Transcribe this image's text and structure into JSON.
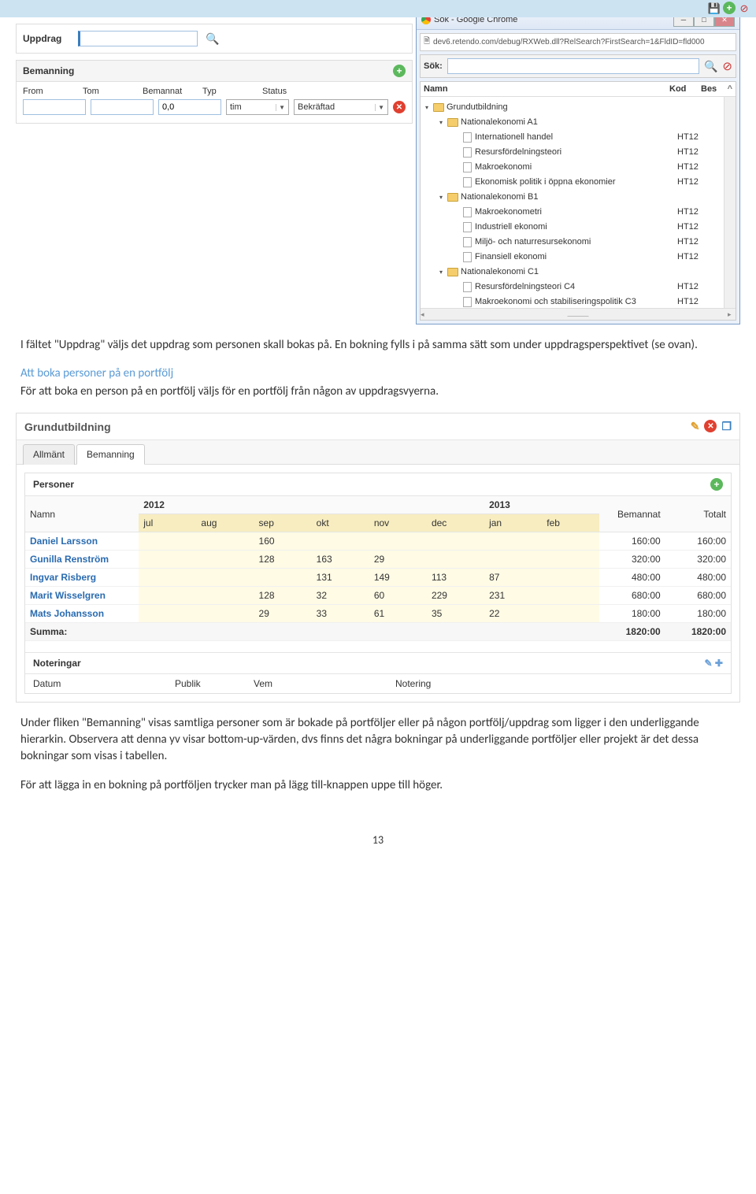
{
  "topbar_icons": {
    "save": "💾",
    "add": "+",
    "block": "⊘"
  },
  "uppdrag": {
    "label": "Uppdrag",
    "value": ""
  },
  "bemanning": {
    "title": "Bemanning",
    "cols": {
      "from": "From",
      "tom": "Tom",
      "bemannat": "Bemannat",
      "typ": "Typ",
      "status": "Status"
    },
    "row": {
      "from": "",
      "tom": "",
      "bemannat": "0,0",
      "typ": "tim",
      "status": "Bekräftad"
    }
  },
  "popup": {
    "title": "Sök - Google Chrome",
    "url": "dev6.retendo.com/debug/RXWeb.dll?RelSearch?FirstSearch=1&FldID=fld000",
    "sok_label": "Sök:",
    "cols": {
      "namn": "Namn",
      "kod": "Kod",
      "bes": "Bes",
      "caret": "^"
    },
    "tree": [
      {
        "indent": 0,
        "type": "folder",
        "expand": "▾",
        "label": "Grundutbildning",
        "kod": ""
      },
      {
        "indent": 1,
        "type": "folder",
        "expand": "▾",
        "label": "Nationalekonomi A1",
        "kod": ""
      },
      {
        "indent": 2,
        "type": "doc",
        "label": "Internationell handel",
        "kod": "HT12"
      },
      {
        "indent": 2,
        "type": "doc",
        "label": "Resursfördelningsteori",
        "kod": "HT12"
      },
      {
        "indent": 2,
        "type": "doc",
        "label": "Makroekonomi",
        "kod": "HT12"
      },
      {
        "indent": 2,
        "type": "doc",
        "label": "Ekonomisk politik i öppna ekonomier",
        "kod": "HT12"
      },
      {
        "indent": 1,
        "type": "folder",
        "expand": "▾",
        "label": "Nationalekonomi B1",
        "kod": ""
      },
      {
        "indent": 2,
        "type": "doc",
        "label": "Makroekonometri",
        "kod": "HT12"
      },
      {
        "indent": 2,
        "type": "doc",
        "label": "Industriell ekonomi",
        "kod": "HT12"
      },
      {
        "indent": 2,
        "type": "doc",
        "label": "Miljö- och naturresursekonomi",
        "kod": "HT12"
      },
      {
        "indent": 2,
        "type": "doc",
        "label": "Finansiell ekonomi",
        "kod": "HT12"
      },
      {
        "indent": 1,
        "type": "folder",
        "expand": "▾",
        "label": "Nationalekonomi C1",
        "kod": ""
      },
      {
        "indent": 2,
        "type": "doc",
        "label": "Resursfördelningsteori C4",
        "kod": "HT12"
      },
      {
        "indent": 2,
        "type": "doc",
        "label": "Makroekonomi och stabiliseringspolitik C3",
        "kod": "HT12"
      }
    ]
  },
  "para1a": "I fältet \"Uppdrag\" väljs det uppdrag som personen skall bokas på. En bokning fylls i på samma sätt som under uppdragsperspektivet (se ovan).",
  "subheading": "Att boka personer på en portfölj",
  "para1b": "För att boka en person på en portfölj väljs för en portfölj från någon av uppdragsvyerna.",
  "grundutbildning": {
    "title": "Grundutbildning",
    "tabs": {
      "allmant": "Allmänt",
      "bemanning": "Bemanning"
    },
    "personer": {
      "title": "Personer",
      "year1": "2012",
      "year2": "2013",
      "months": [
        "jul",
        "aug",
        "sep",
        "okt",
        "nov",
        "dec",
        "jan",
        "feb"
      ],
      "col_namn": "Namn",
      "col_bemannat": "Bemannat",
      "col_totalt": "Totalt",
      "rows": [
        {
          "name": "Daniel Larsson",
          "vals": [
            "",
            "",
            "160",
            "",
            "",
            "",
            "",
            ""
          ],
          "bem": "160:00",
          "tot": "160:00"
        },
        {
          "name": "Gunilla Renström",
          "vals": [
            "",
            "",
            "128",
            "163",
            "29",
            "",
            "",
            ""
          ],
          "bem": "320:00",
          "tot": "320:00"
        },
        {
          "name": "Ingvar Risberg",
          "vals": [
            "",
            "",
            "",
            "131",
            "149",
            "113",
            "87",
            ""
          ],
          "bem": "480:00",
          "tot": "480:00"
        },
        {
          "name": "Marit Wisselgren",
          "vals": [
            "",
            "",
            "128",
            "32",
            "60",
            "229",
            "231",
            ""
          ],
          "bem": "680:00",
          "tot": "680:00"
        },
        {
          "name": "Mats Johansson",
          "vals": [
            "",
            "",
            "29",
            "33",
            "61",
            "35",
            "22",
            ""
          ],
          "bem": "180:00",
          "tot": "180:00"
        }
      ],
      "sum_label": "Summa:",
      "sum_bem": "1820:00",
      "sum_tot": "1820:00"
    },
    "noteringar": {
      "title": "Noteringar",
      "cols": {
        "datum": "Datum",
        "publik": "Publik",
        "vem": "Vem",
        "notering": "Notering"
      }
    }
  },
  "para2": "Under fliken \"Bemanning\" visas samtliga personer som är bokade på portföljer eller på någon portfölj/uppdrag som ligger i den underliggande hierarkin. Observera att denna yv visar bottom-up-värden, dvs finns det några bokningar på underliggande portföljer eller projekt är det dessa bokningar som visas i tabellen.",
  "para3": "För att lägga in en bokning på portföljen trycker man på lägg till-knappen uppe till höger.",
  "pagenum": "13"
}
